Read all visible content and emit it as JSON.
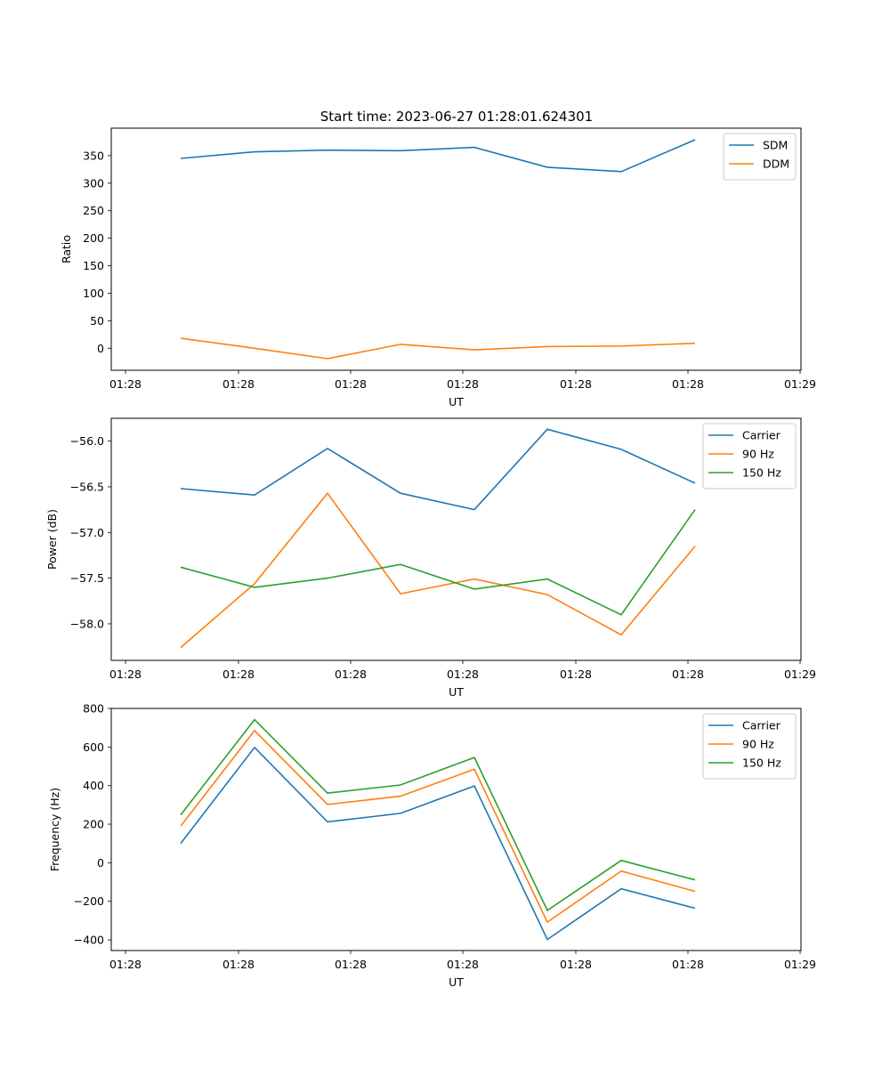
{
  "figure_title": "Start time: 2023-06-27 01:28:01.624301",
  "x_tick_labels": [
    "01:28",
    "01:28",
    "01:28",
    "01:28",
    "01:28",
    "01:28",
    "01:29"
  ],
  "chart_data": [
    {
      "type": "line",
      "title": "Start time: 2023-06-27 01:28:01.624301",
      "xlabel": "UT",
      "ylabel": "Ratio",
      "x": [
        1,
        2,
        3,
        4,
        5,
        6,
        7,
        8
      ],
      "ylim": [
        -40,
        400
      ],
      "yticks": [
        0,
        50,
        100,
        150,
        200,
        250,
        300,
        350
      ],
      "grid": false,
      "legend": "top-right",
      "series": [
        {
          "name": "SDM",
          "color": "#1f77b4",
          "values": [
            345,
            357,
            360,
            359,
            365,
            329,
            321,
            379
          ]
        },
        {
          "name": "DDM",
          "color": "#ff7f0e",
          "values": [
            18,
            0,
            -19,
            7,
            -3,
            3,
            4,
            9
          ]
        }
      ]
    },
    {
      "type": "line",
      "xlabel": "UT",
      "ylabel": "Power (dB)",
      "x": [
        1,
        2,
        3,
        4,
        5,
        6,
        7,
        8
      ],
      "ylim": [
        -58.4,
        -55.75
      ],
      "yticks": [
        -58.0,
        -57.5,
        -57.0,
        -56.5,
        -56.0
      ],
      "ytick_labels": [
        "−58.0",
        "−57.5",
        "−57.0",
        "−56.5",
        "−56.0"
      ],
      "grid": false,
      "legend": "top-right",
      "series": [
        {
          "name": "Carrier",
          "color": "#1f77b4",
          "values": [
            -56.52,
            -56.59,
            -56.08,
            -56.57,
            -56.75,
            -55.87,
            -56.09,
            -56.46
          ]
        },
        {
          "name": "90 Hz",
          "color": "#ff7f0e",
          "values": [
            -58.26,
            -57.56,
            -56.57,
            -57.67,
            -57.51,
            -57.68,
            -58.12,
            -57.15
          ]
        },
        {
          "name": "150 Hz",
          "color": "#2ca02c",
          "values": [
            -57.38,
            -57.6,
            -57.5,
            -57.35,
            -57.62,
            -57.51,
            -57.9,
            -56.75
          ]
        }
      ]
    },
    {
      "type": "line",
      "xlabel": "UT",
      "ylabel": "Frequency (Hz)",
      "x": [
        1,
        2,
        3,
        4,
        5,
        6,
        7,
        8
      ],
      "ylim": [
        -455,
        800
      ],
      "yticks": [
        -400,
        -200,
        0,
        200,
        400,
        600,
        800
      ],
      "ytick_labels": [
        "−400",
        "−200",
        "0",
        "200",
        "400",
        "600",
        "800"
      ],
      "grid": false,
      "legend": "top-right",
      "series": [
        {
          "name": "Carrier",
          "color": "#1f77b4",
          "values": [
            100,
            598,
            212,
            256,
            398,
            -398,
            -135,
            -236
          ]
        },
        {
          "name": "90 Hz",
          "color": "#ff7f0e",
          "values": [
            190,
            685,
            302,
            345,
            485,
            -308,
            -43,
            -148
          ]
        },
        {
          "name": "150 Hz",
          "color": "#2ca02c",
          "values": [
            248,
            742,
            361,
            403,
            546,
            -247,
            12,
            -89
          ]
        }
      ]
    }
  ]
}
